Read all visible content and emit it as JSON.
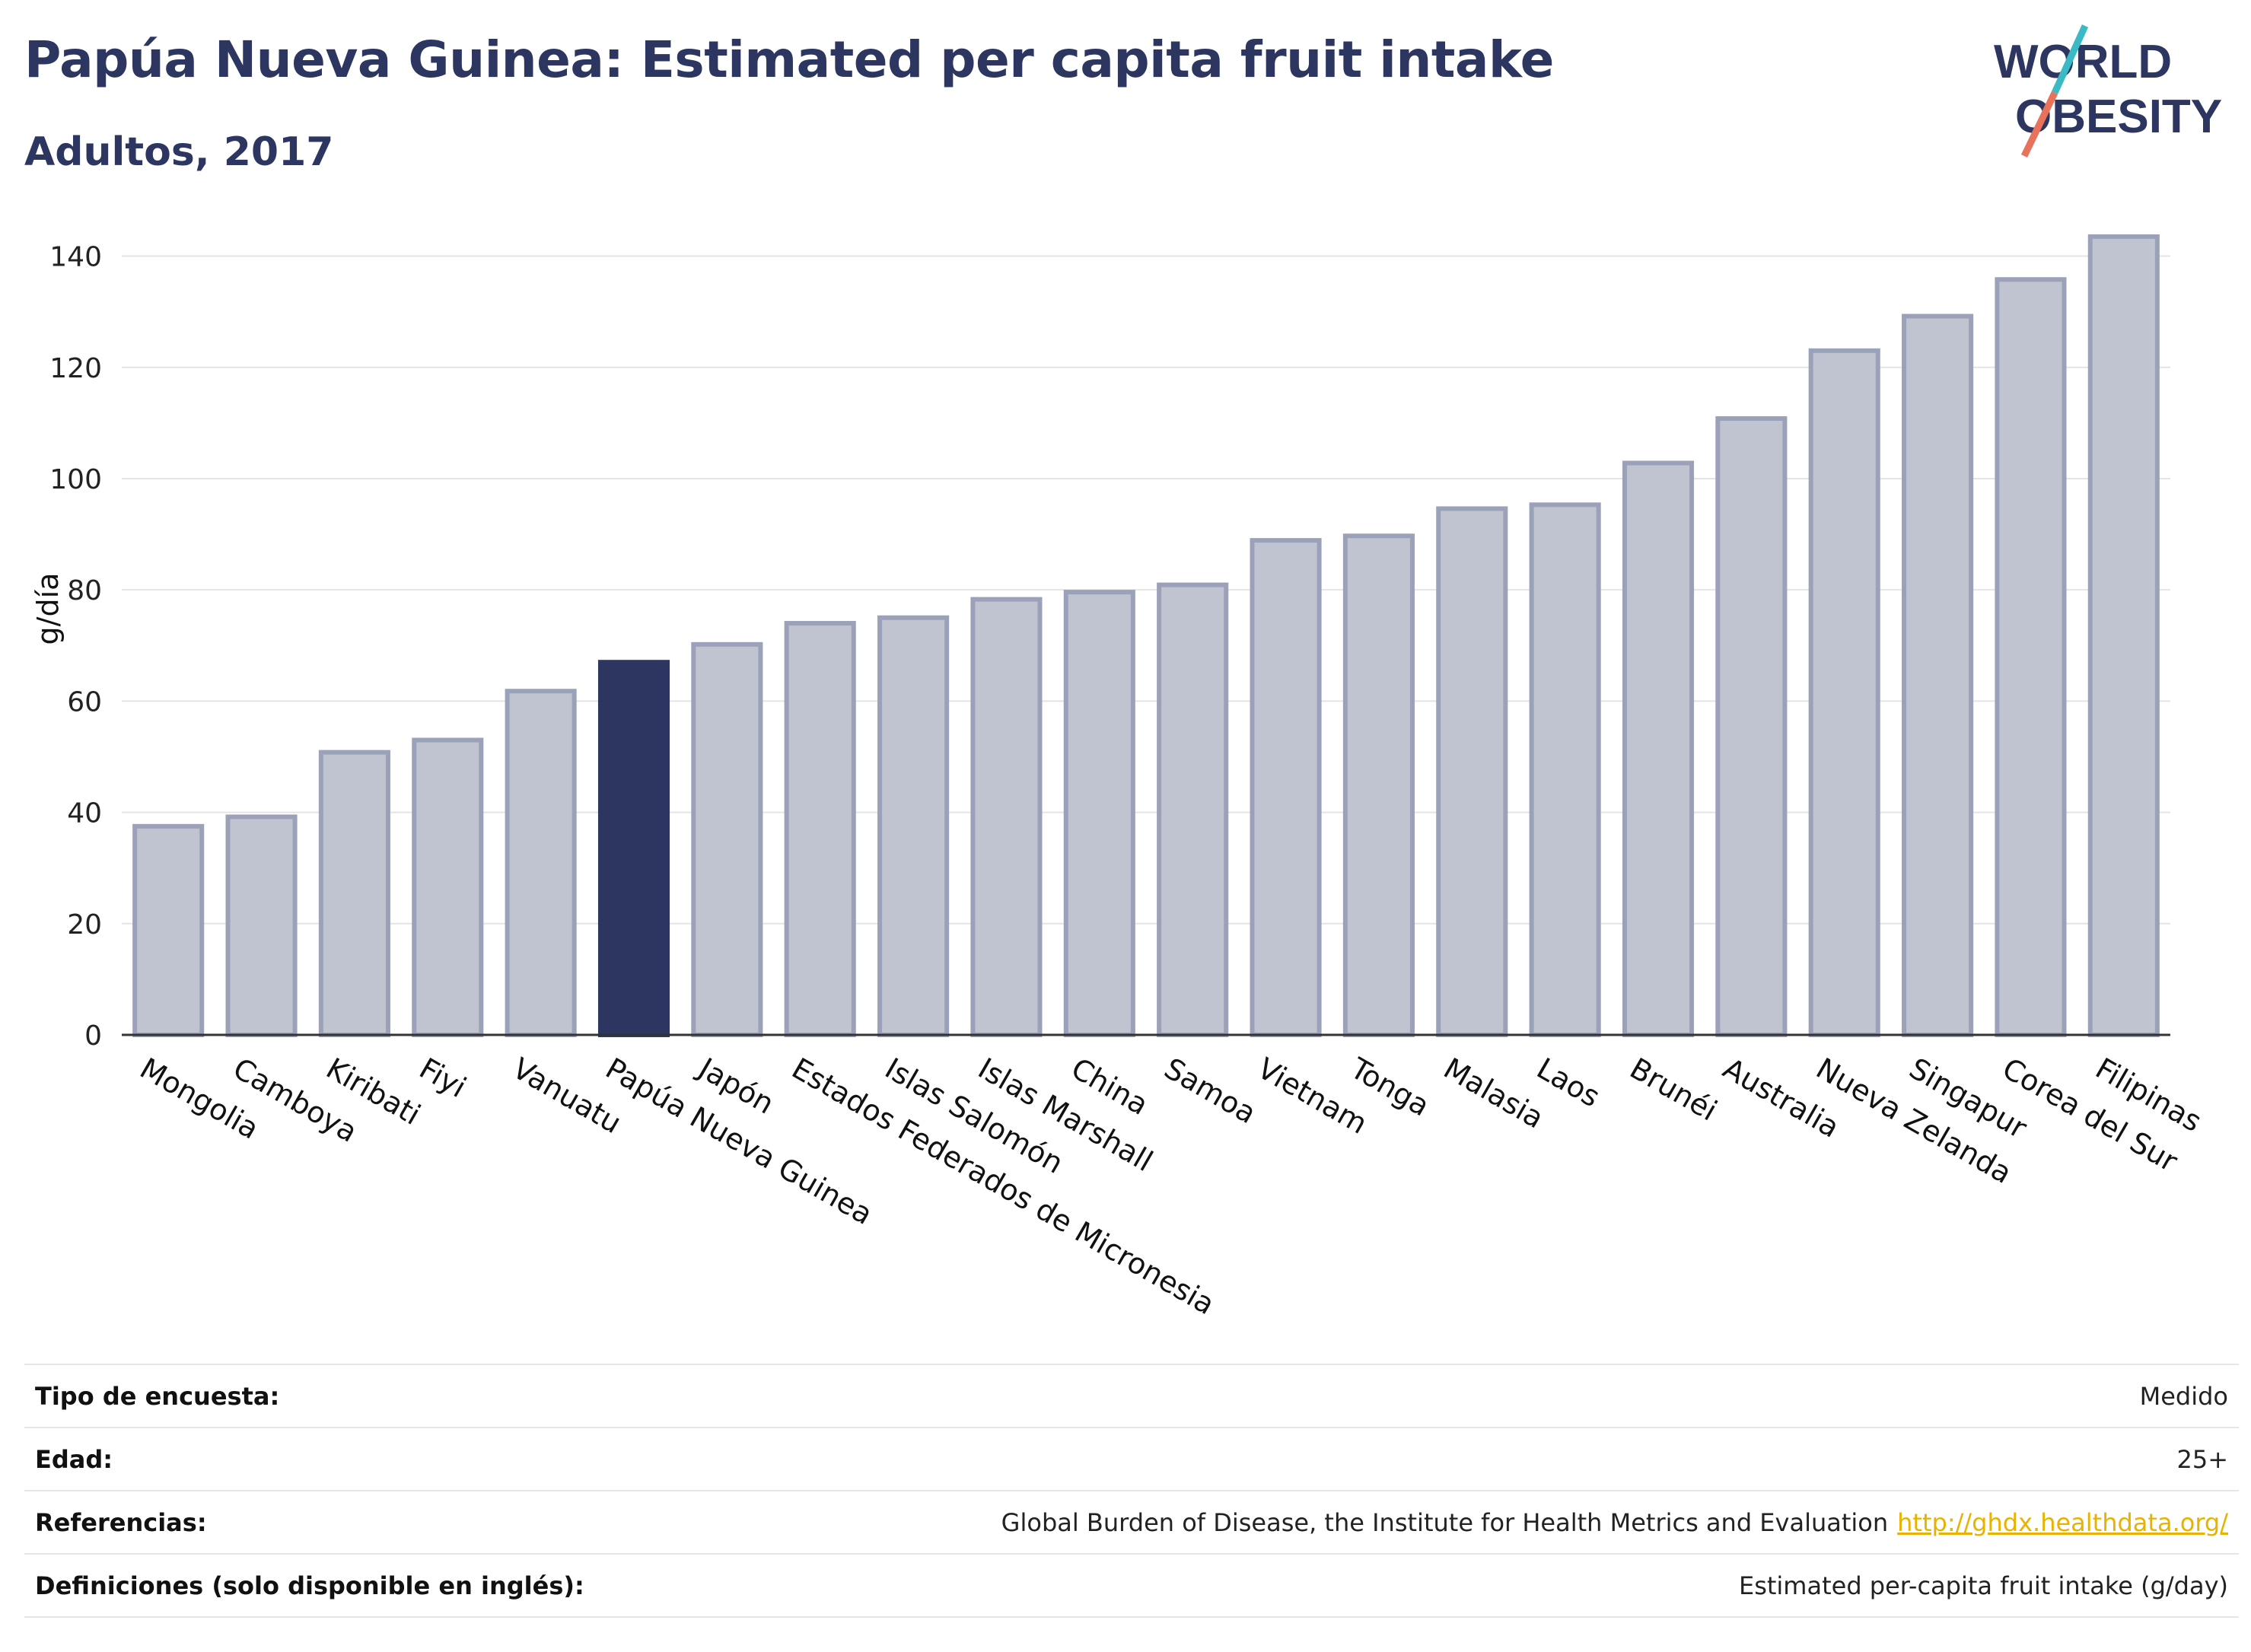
{
  "header": {
    "title": "Papúa Nueva Guinea: Estimated per capita fruit intake",
    "subtitle": "Adultos, 2017"
  },
  "logo": {
    "line1": "WORLD",
    "line2": "OBESITY",
    "accent_colors": [
      "#3bb9c4",
      "#e8725c"
    ]
  },
  "colors": {
    "highlight": "#2d3561",
    "bar_fill": "#c0c3d0",
    "bar_stroke": "#9ba1b8",
    "text_dark": "#2d3561"
  },
  "chart_data": {
    "type": "bar",
    "ylabel": "g/día",
    "ylim": [
      0,
      145
    ],
    "yticks": [
      0,
      20,
      40,
      60,
      80,
      100,
      120,
      140
    ],
    "grid": true,
    "highlight": "Papúa Nueva Guinea",
    "categories": [
      "Mongolia",
      "Camboya",
      "Kiribati",
      "Fiyi",
      "Vanuatu",
      "Papúa Nueva Guinea",
      "Japón",
      "Estados Federados de Micronesia",
      "Islas Salomón",
      "Islas Marshall",
      "China",
      "Samoa",
      "Vietnam",
      "Tonga",
      "Malasia",
      "Laos",
      "Brunéi",
      "Australia",
      "Nueva Zelanda",
      "Singapur",
      "Corea del Sur",
      "Filipinas"
    ],
    "values": [
      37.5,
      39.2,
      50.8,
      53.0,
      61.8,
      67.0,
      70.2,
      74.0,
      75.0,
      78.3,
      79.6,
      80.9,
      88.9,
      89.7,
      94.6,
      95.3,
      102.8,
      110.8,
      123.0,
      129.2,
      135.8,
      143.5
    ]
  },
  "info": {
    "rows": [
      {
        "label": "Tipo de encuesta:",
        "value": "Medido"
      },
      {
        "label": "Edad:",
        "value": "25+"
      },
      {
        "label": "Referencias:",
        "value": "Global Burden of Disease, the Institute for Health Metrics and Evaluation",
        "link": "http://ghdx.healthdata.org/"
      },
      {
        "label": "Definiciones (solo disponible en inglés):",
        "value": "Estimated per-capita fruit intake (g/day)"
      }
    ]
  }
}
